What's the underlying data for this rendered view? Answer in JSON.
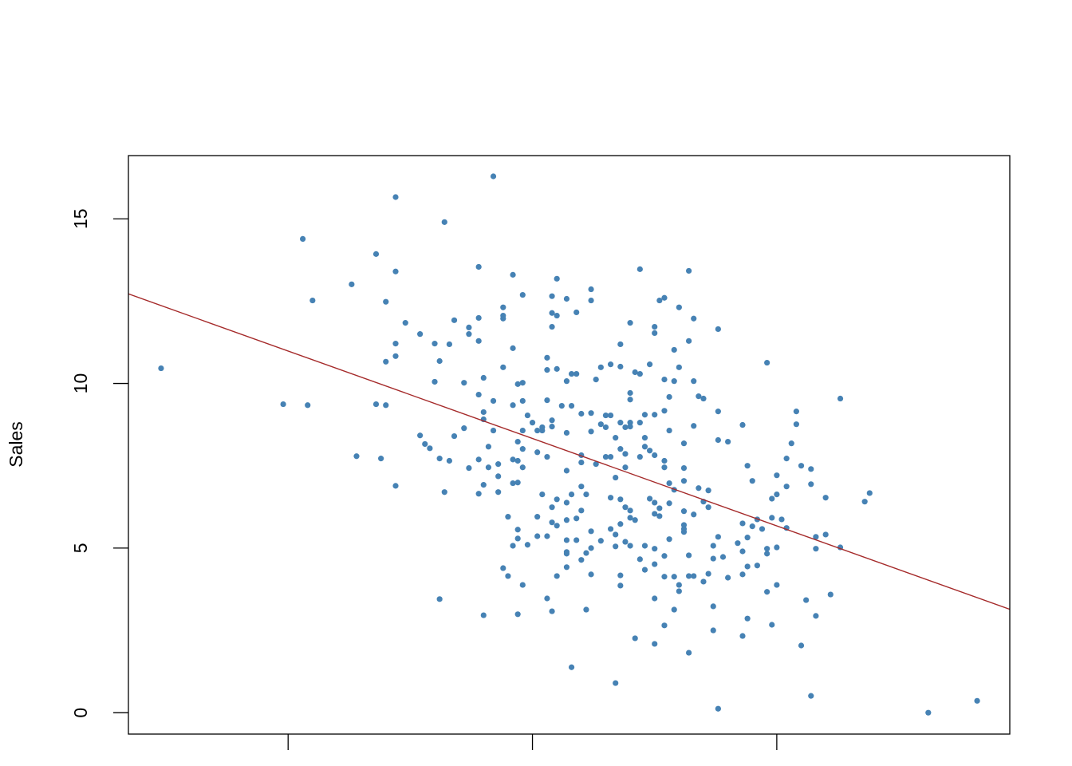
{
  "chart_data": {
    "type": "scatter",
    "y_label": "Sales",
    "color": "#4682b4",
    "xlim": [
      17.32,
      197.68
    ],
    "ylim": [
      -0.65,
      16.92
    ],
    "xticks": [
      50,
      100,
      150
    ],
    "yticks": [
      0,
      5,
      10,
      15
    ],
    "fit_line": {
      "color": "#a52a2a",
      "x": [
        17.32,
        197.68
      ],
      "y": [
        12.72,
        3.14
      ]
    },
    "x": [
      24,
      49,
      53,
      54,
      55,
      63,
      64,
      68,
      68,
      69,
      70,
      70,
      70,
      72,
      72,
      72,
      72,
      72,
      74,
      77,
      77,
      78,
      79,
      80,
      80,
      81,
      81,
      81,
      82,
      82,
      83,
      83,
      84,
      84,
      86,
      86,
      87,
      87,
      87,
      89,
      89,
      89,
      89,
      89,
      89,
      90,
      90,
      90,
      90,
      90,
      91,
      91,
      92,
      92,
      92,
      93,
      93,
      93,
      94,
      94,
      94,
      94,
      94,
      95,
      95,
      96,
      96,
      96,
      96,
      96,
      96,
      97,
      97,
      97,
      97,
      97,
      97,
      97,
      98,
      98,
      98,
      98,
      98,
      98,
      98,
      99,
      99,
      100,
      101,
      101,
      101,
      101,
      102,
      102,
      102,
      103,
      103,
      103,
      103,
      103,
      103,
      104,
      104,
      104,
      104,
      104,
      104,
      104,
      104,
      105,
      105,
      105,
      105,
      105,
      105,
      106,
      107,
      107,
      107,
      107,
      107,
      107,
      107,
      107,
      107,
      107,
      108,
      108,
      108,
      108,
      109,
      109,
      109,
      109,
      110,
      110,
      110,
      110,
      110,
      110,
      111,
      111,
      111,
      112,
      112,
      112,
      112,
      112,
      112,
      112,
      113,
      113,
      114,
      114,
      114,
      115,
      115,
      115,
      116,
      116,
      116,
      116,
      116,
      117,
      117,
      117,
      117,
      117,
      118,
      118,
      118,
      118,
      118,
      118,
      118,
      118,
      119,
      119,
      119,
      119,
      119,
      120,
      120,
      120,
      120,
      120,
      120,
      120,
      120,
      121,
      121,
      121,
      122,
      122,
      122,
      122,
      122,
      123,
      123,
      123,
      123,
      123,
      124,
      124,
      124,
      125,
      125,
      125,
      125,
      125,
      125,
      125,
      125,
      125,
      125,
      126,
      126,
      126,
      127,
      127,
      127,
      127,
      127,
      127,
      127,
      127,
      128,
      128,
      128,
      128,
      128,
      129,
      129,
      129,
      129,
      129,
      130,
      130,
      130,
      130,
      131,
      131,
      131,
      131,
      131,
      131,
      131,
      132,
      132,
      132,
      132,
      132,
      133,
      133,
      133,
      133,
      133,
      134,
      134,
      135,
      135,
      135,
      136,
      136,
      136,
      137,
      137,
      137,
      137,
      138,
      138,
      138,
      138,
      138,
      139,
      140,
      140,
      142,
      143,
      143,
      143,
      143,
      143,
      144,
      144,
      144,
      144,
      145,
      145,
      146,
      146,
      147,
      148,
      148,
      148,
      148,
      149,
      149,
      149,
      150,
      150,
      150,
      150,
      151,
      152,
      152,
      152,
      153,
      154,
      154,
      155,
      155,
      156,
      157,
      157,
      157,
      158,
      158,
      158,
      160,
      160,
      161,
      163,
      163,
      168,
      169,
      181,
      191
    ],
    "y": [
      10.46,
      9.37,
      14.39,
      9.34,
      12.52,
      13.01,
      7.79,
      13.93,
      9.37,
      7.72,
      12.48,
      10.66,
      9.34,
      15.66,
      13.4,
      11.21,
      10.83,
      6.89,
      11.84,
      11.5,
      8.42,
      8.16,
      8.03,
      11.21,
      10.05,
      3.45,
      7.72,
      10.68,
      14.9,
      6.7,
      11.19,
      7.65,
      8.4,
      11.92,
      10.02,
      8.64,
      11.7,
      11.5,
      7.43,
      13.54,
      11.99,
      11.29,
      9.66,
      7.69,
      6.65,
      2.96,
      6.92,
      10.17,
      9.13,
      8.91,
      7.45,
      8.08,
      16.29,
      9.47,
      8.57,
      7.18,
      7.55,
      6.7,
      12.31,
      12.06,
      11.97,
      10.49,
      4.39,
      4.15,
      5.95,
      13.3,
      11.07,
      9.34,
      7.69,
      5.07,
      6.97,
      2.99,
      8.23,
      7.65,
      5.56,
      6.99,
      5.29,
      9.98,
      3.88,
      7.45,
      12.69,
      10.02,
      8.57,
      8.01,
      9.47,
      9.03,
      5.1,
      8.81,
      8.57,
      5.95,
      5.36,
      7.91,
      8.67,
      6.63,
      8.57,
      3.47,
      10.78,
      10.41,
      9.49,
      5.36,
      7.77,
      3.08,
      12.65,
      12.14,
      11.72,
      8.69,
      8.88,
      6.24,
      5.78,
      13.18,
      12.06,
      10.44,
      6.48,
      5.68,
      4.15,
      9.32,
      12.57,
      10.07,
      8.5,
      7.35,
      6.38,
      5.85,
      5.24,
      4.88,
      4.83,
      4.42,
      1.38,
      9.32,
      10.29,
      6.63,
      5.9,
      10.29,
      12.16,
      5.24,
      7.82,
      7.6,
      6.87,
      6.14,
      4.64,
      9.08,
      3.13,
      6.63,
      4.85,
      12.86,
      12.52,
      9.1,
      8.54,
      5.51,
      5.0,
      4.2,
      10.12,
      7.55,
      10.49,
      8.76,
      5.22,
      9.03,
      7.77,
      8.67,
      10.58,
      7.77,
      9.03,
      6.53,
      5.58,
      0.9,
      8.35,
      5.41,
      5.05,
      7.14,
      11.19,
      10.51,
      4.17,
      3.86,
      8.01,
      5.73,
      6.48,
      8.81,
      8.67,
      7.86,
      7.45,
      6.24,
      5.19,
      11.84,
      9.71,
      9.51,
      8.81,
      8.69,
      5.92,
      6.14,
      5.07,
      10.34,
      5.85,
      2.26,
      13.47,
      10.29,
      7.77,
      4.66,
      8.81,
      4.34,
      9.05,
      8.08,
      8.35,
      5.07,
      10.58,
      7.96,
      6.5,
      6.04,
      3.47,
      9.05,
      7.82,
      4.51,
      11.72,
      11.53,
      2.09,
      6.38,
      4.98,
      12.52,
      6.21,
      5.97,
      12.6,
      10.12,
      7.65,
      7.45,
      2.65,
      4.13,
      9.17,
      4.76,
      8.57,
      9.59,
      6.97,
      5.27,
      6.36,
      11.02,
      3.13,
      4.13,
      10.07,
      6.77,
      12.31,
      10.49,
      3.69,
      3.88,
      8.18,
      7.43,
      7.04,
      6.12,
      5.49,
      5.58,
      5.7,
      1.82,
      11.29,
      4.15,
      4.78,
      13.42,
      11.97,
      10.07,
      8.71,
      6.02,
      4.15,
      9.61,
      6.82,
      3.98,
      9.54,
      6.41,
      6.75,
      6.24,
      4.22,
      5.07,
      4.68,
      3.23,
      2.5,
      9.15,
      11.65,
      8.28,
      0.12,
      5.34,
      4.73,
      8.23,
      4.1,
      5.15,
      8.74,
      5.75,
      4.9,
      4.2,
      2.33,
      7.5,
      2.86,
      5.32,
      4.44,
      7.04,
      5.66,
      4.47,
      5.87,
      5.58,
      10.63,
      3.67,
      4.98,
      4.83,
      6.5,
      5.92,
      2.67,
      7.21,
      6.63,
      5.02,
      3.88,
      5.87,
      7.72,
      5.61,
      6.87,
      8.18,
      9.15,
      8.76,
      7.5,
      2.04,
      3.42,
      7.4,
      6.94,
      0.51,
      4.98,
      5.34,
      2.94,
      6.53,
      5.41,
      3.59,
      9.54,
      5.02,
      6.41,
      6.67,
      0.0,
      0.36
    ]
  }
}
